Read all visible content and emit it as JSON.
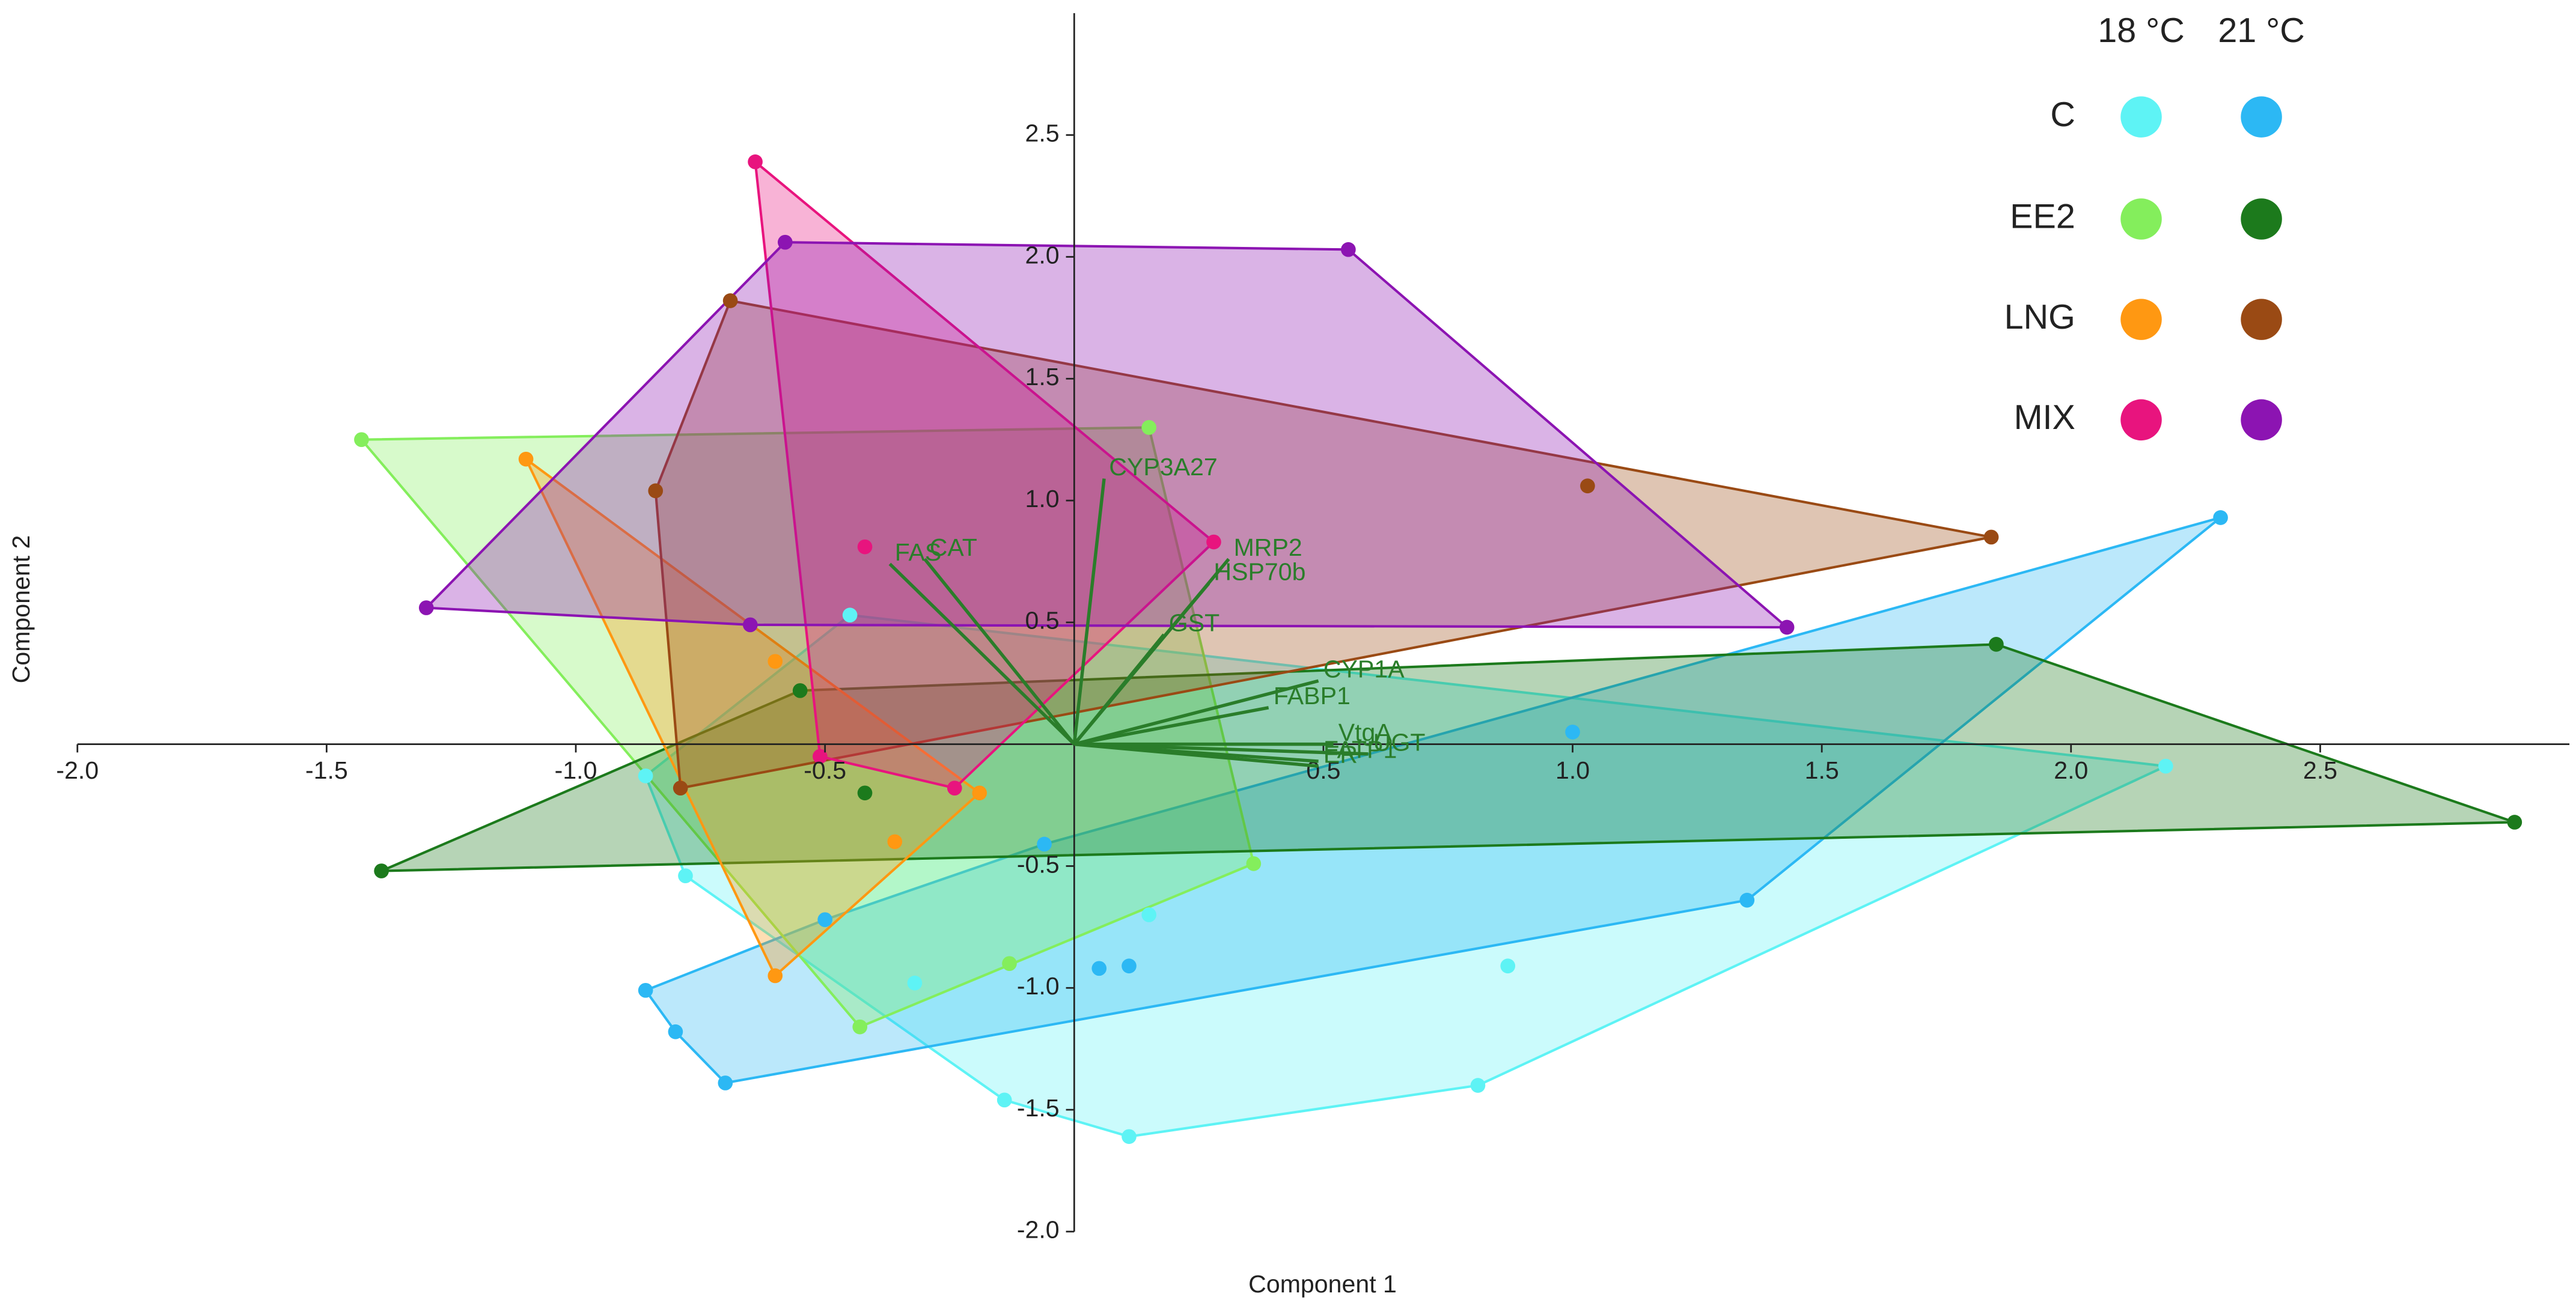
{
  "chart_data": {
    "type": "biplot",
    "xlabel": "Component 1",
    "ylabel": "Component 2",
    "xlim": [
      -2,
      3
    ],
    "ylim": [
      -2,
      3
    ],
    "xticks": [
      {
        "value": -2,
        "label": "-2.0"
      },
      -1.5,
      {
        "value": -1,
        "label": "-1.0"
      },
      -0.5,
      0.5,
      {
        "value": 1,
        "label": "1.0"
      },
      1.5,
      {
        "value": 2,
        "label": "2.0"
      },
      2.5
    ],
    "yticks": [
      {
        "value": -2,
        "label": "-2.0"
      },
      -1.5,
      {
        "value": -1,
        "label": "-1.0"
      },
      -0.5,
      0.5,
      {
        "value": 1,
        "label": "1.0"
      },
      1.5,
      {
        "value": 2,
        "label": "2.0"
      },
      2.5
    ],
    "temperatures": [
      "18 °C",
      "21 °C"
    ],
    "groups": [
      {
        "name": "C",
        "colors": [
          "#5ef3f5",
          "#2cb8f4"
        ],
        "series": [
          {
            "x": [
              -0.45,
              -0.86,
              -0.78,
              -0.32,
              -0.14,
              0.11,
              0.81,
              2.19,
              0.15,
              0.87
            ],
            "y": [
              0.53,
              -0.13,
              -0.54,
              -0.98,
              -1.46,
              -1.61,
              -1.4,
              -0.09,
              -0.7,
              -0.91
            ]
          },
          {
            "x": [
              2.3,
              1.35,
              -0.7,
              -0.8,
              -0.86,
              -0.5,
              -0.06,
              1.0,
              0.05,
              0.11
            ],
            "y": [
              0.93,
              -0.64,
              -1.39,
              -1.18,
              -1.01,
              -0.72,
              -0.41,
              0.05,
              -0.92,
              -0.91
            ]
          }
        ]
      },
      {
        "name": "EE2",
        "colors": [
          "#84ee5c",
          "#1c7a1c"
        ],
        "series": [
          {
            "x": [
              -1.43,
              0.15,
              0.36,
              -0.13,
              -0.43
            ],
            "y": [
              1.25,
              1.3,
              -0.49,
              -0.9,
              -1.16
            ]
          },
          {
            "x": [
              1.85,
              2.89,
              -1.39,
              -0.55,
              -0.42
            ],
            "y": [
              0.41,
              -0.32,
              -0.52,
              0.22,
              -0.2
            ]
          }
        ]
      },
      {
        "name": "LNG",
        "colors": [
          "#ff9812",
          "#9a4a14"
        ],
        "series": [
          {
            "x": [
              -1.1,
              -0.19,
              -0.6,
              -0.6,
              -0.36
            ],
            "y": [
              1.17,
              -0.2,
              -0.95,
              0.34,
              -0.4
            ]
          },
          {
            "x": [
              -0.69,
              1.84,
              -0.79,
              -0.84,
              1.03
            ],
            "y": [
              1.82,
              0.85,
              -0.18,
              1.04,
              1.06
            ]
          }
        ]
      },
      {
        "name": "MIX",
        "colors": [
          "#e8147e",
          "#8c14b2"
        ],
        "series": [
          {
            "x": [
              -0.64,
              0.28,
              -0.24,
              -0.51,
              -0.42
            ],
            "y": [
              2.39,
              0.83,
              -0.18,
              -0.05,
              0.81
            ]
          },
          {
            "x": [
              -0.58,
              0.55,
              1.43,
              -0.65,
              -1.3
            ],
            "y": [
              2.06,
              2.03,
              0.48,
              0.49,
              0.56
            ]
          }
        ]
      }
    ],
    "loadings_color": "#2a7d2a",
    "loadings": [
      {
        "name": "CYP3A27",
        "x": 0.06,
        "y": 1.09
      },
      {
        "name": "MRP2",
        "x": 0.31,
        "y": 0.76
      },
      {
        "name": "HSP70b",
        "x": 0.27,
        "y": 0.66
      },
      {
        "name": "GST",
        "x": 0.18,
        "y": 0.45
      },
      {
        "name": "CAT",
        "x": -0.3,
        "y": 0.76
      },
      {
        "name": "FAS",
        "x": -0.37,
        "y": 0.74
      },
      {
        "name": "CYP1A",
        "x": 0.49,
        "y": 0.26
      },
      {
        "name": "FABP1",
        "x": 0.39,
        "y": 0.15
      },
      {
        "name": "VtgA",
        "x": 0.52,
        "y": 0.0
      },
      {
        "name": "UGT",
        "x": 0.59,
        "y": -0.04
      },
      {
        "name": "FATP1",
        "x": 0.49,
        "y": -0.07
      },
      {
        "name": "ER",
        "x": 0.49,
        "y": -0.09
      }
    ]
  }
}
